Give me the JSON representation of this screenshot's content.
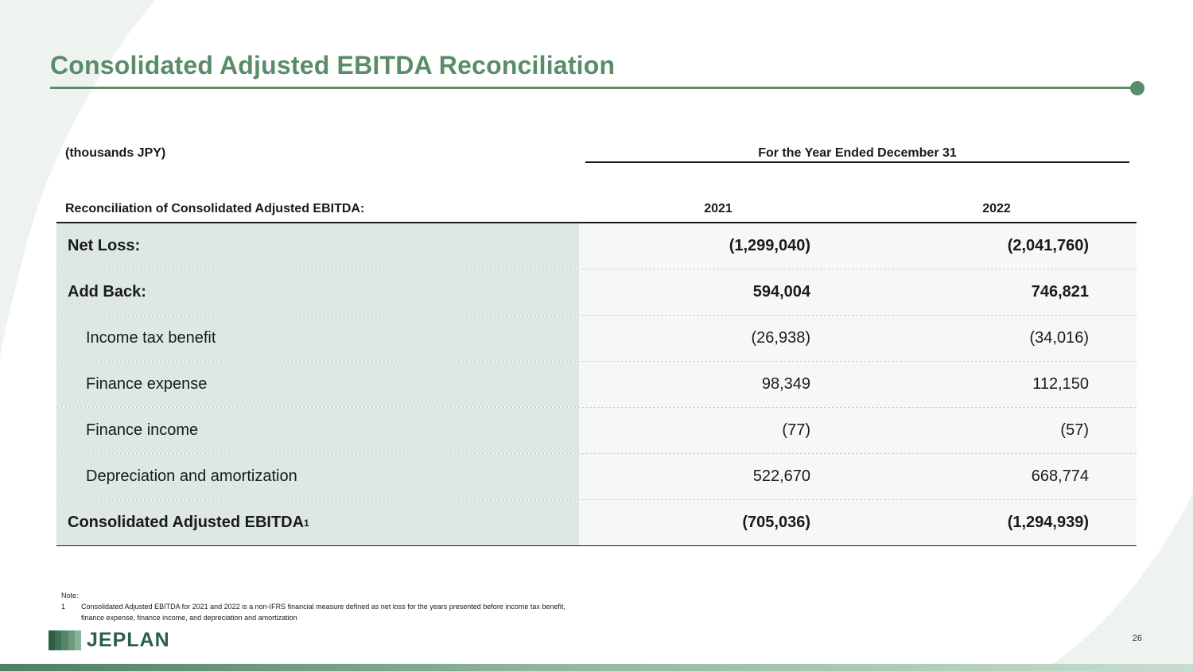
{
  "title": "Consolidated Adjusted EBITDA Reconciliation",
  "units": "(thousands JPY)",
  "period_header": "For the Year Ended December 31",
  "recon_label": "Reconciliation of Consolidated Adjusted EBITDA:",
  "years": [
    "2021",
    "2022"
  ],
  "rows": [
    {
      "label": "Net Loss:",
      "v2021": "(1,299,040)",
      "v2022": "(2,041,760)",
      "bold": true,
      "indent": false
    },
    {
      "label": "Add Back:",
      "v2021": "594,004",
      "v2022": "746,821",
      "bold": true,
      "indent": false
    },
    {
      "label": "Income tax benefit",
      "v2021": "(26,938)",
      "v2022": "(34,016)",
      "bold": false,
      "indent": true
    },
    {
      "label": "Finance expense",
      "v2021": "98,349",
      "v2022": "112,150",
      "bold": false,
      "indent": true
    },
    {
      "label": "Finance income",
      "v2021": "(77)",
      "v2022": "(57)",
      "bold": false,
      "indent": true
    },
    {
      "label": "Depreciation and amortization",
      "v2021": "522,670",
      "v2022": "668,774",
      "bold": false,
      "indent": true
    },
    {
      "label": "Consolidated Adjusted EBITDA",
      "superscript": "1",
      "v2021": "(705,036)",
      "v2022": "(1,294,939)",
      "bold": true,
      "indent": false
    }
  ],
  "note": {
    "heading": "Note:",
    "number": "1",
    "text": "Consolidated Adjusted EBITDA for 2021 and 2022 is a non-IFRS financial measure defined as net loss for the years presented before income tax benefit, finance expense, finance income, and depreciation and amortization"
  },
  "logo_text": "JEPLAN",
  "page_number": "26",
  "colors": {
    "accent": "#5a8c6a",
    "label_fill": "#dde8e2",
    "value_fill": "#f6f8f7",
    "logo_text": "#2e5e45"
  }
}
